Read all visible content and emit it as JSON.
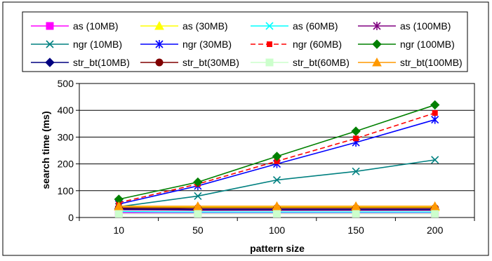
{
  "chart_data": {
    "type": "line",
    "xlabel": "pattern size",
    "ylabel": "search time (ms)",
    "x": [
      10,
      50,
      100,
      150,
      200
    ],
    "ylim": [
      0,
      500
    ],
    "yticks": [
      0,
      100,
      200,
      300,
      400,
      500
    ],
    "grid": true,
    "legend_position": "top",
    "series": [
      {
        "name": "as (10MB)",
        "values": [
          18,
          16,
          16,
          16,
          16
        ],
        "color": "#ff00ff",
        "marker": "square",
        "dash": false
      },
      {
        "name": "as (30MB)",
        "values": [
          41,
          38,
          38,
          38,
          38
        ],
        "color": "#ffff00",
        "marker": "triangle",
        "dash": false
      },
      {
        "name": "as (60MB)",
        "values": [
          22,
          20,
          20,
          20,
          20
        ],
        "color": "#00ffff",
        "marker": "x",
        "dash": false
      },
      {
        "name": "as (100MB)",
        "values": [
          29,
          27,
          27,
          27,
          27
        ],
        "color": "#800080",
        "marker": "star",
        "dash": false
      },
      {
        "name": "ngr (10MB)",
        "values": [
          40,
          80,
          140,
          172,
          215
        ],
        "color": "#008080",
        "marker": "x",
        "dash": false
      },
      {
        "name": "ngr (30MB)",
        "values": [
          50,
          118,
          200,
          280,
          365
        ],
        "color": "#0000ff",
        "marker": "star",
        "dash": false
      },
      {
        "name": "ngr (60MB)",
        "values": [
          55,
          125,
          210,
          295,
          390
        ],
        "color": "#ff0000",
        "marker": "square-small",
        "dash": true
      },
      {
        "name": "ngr (100MB)",
        "values": [
          68,
          132,
          228,
          322,
          420
        ],
        "color": "#008000",
        "marker": "diamond",
        "dash": false
      },
      {
        "name": "str_bt(10MB)",
        "values": [
          32,
          30,
          30,
          30,
          30
        ],
        "color": "#000080",
        "marker": "diamond",
        "dash": false
      },
      {
        "name": "str_bt(30MB)",
        "values": [
          36,
          35,
          35,
          35,
          35
        ],
        "color": "#800000",
        "marker": "circle",
        "dash": false
      },
      {
        "name": "str_bt(60MB)",
        "values": [
          14,
          14,
          14,
          14,
          14
        ],
        "color": "#ccffcc",
        "marker": "square",
        "dash": false
      },
      {
        "name": "str_bt(100MB)",
        "values": [
          42,
          42,
          42,
          42,
          42
        ],
        "color": "#ff9900",
        "marker": "triangle",
        "dash": false
      }
    ]
  }
}
